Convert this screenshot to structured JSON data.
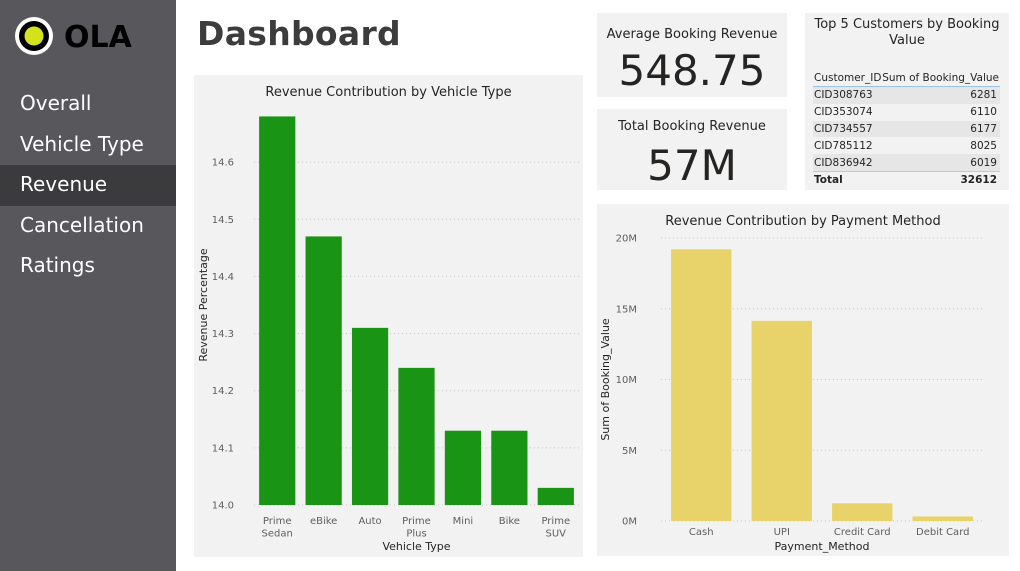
{
  "brand": {
    "logo_text": "OLA"
  },
  "nav": {
    "items": [
      {
        "label": "Overall",
        "active": false
      },
      {
        "label": "Vehicle Type",
        "active": false
      },
      {
        "label": "Revenue",
        "active": true
      },
      {
        "label": "Cancellation",
        "active": false
      },
      {
        "label": "Ratings",
        "active": false
      }
    ]
  },
  "page": {
    "title": "Dashboard"
  },
  "kpis": {
    "avg_booking_revenue": {
      "title": "Average Booking Revenue",
      "value": "548.75"
    },
    "total_booking_revenue": {
      "title": "Total Booking Revenue",
      "value": "57M"
    }
  },
  "top_customers": {
    "title": "Top 5 Customers by Booking Value",
    "columns": [
      "Customer_ID",
      "Sum of Booking_Value"
    ],
    "rows": [
      {
        "id": "CID308763",
        "value": "6281"
      },
      {
        "id": "CID353074",
        "value": "6110"
      },
      {
        "id": "CID734557",
        "value": "6177"
      },
      {
        "id": "CID785112",
        "value": "8025"
      },
      {
        "id": "CID836942",
        "value": "6019"
      }
    ],
    "total_label": "Total",
    "total_value": "32612"
  },
  "colors": {
    "vehicle_bar": "#1a9414",
    "payment_bar": "#e8d36a",
    "sidebar": "#58585c",
    "nav_active": "#3b3b3e"
  },
  "chart_data": [
    {
      "type": "bar",
      "title": "Revenue Contribution by Vehicle Type",
      "xlabel": "Vehicle Type",
      "ylabel": "Revenue Percentage",
      "categories": [
        "Prime Sedan",
        "eBike",
        "Auto",
        "Prime Plus",
        "Mini",
        "Bike",
        "Prime SUV"
      ],
      "values": [
        14.68,
        14.47,
        14.31,
        14.24,
        14.13,
        14.13,
        14.03
      ],
      "ylim": [
        14.0,
        14.7
      ],
      "yticks": [
        14.0,
        14.1,
        14.2,
        14.3,
        14.4,
        14.5,
        14.6
      ],
      "ytick_labels": [
        "14.0",
        "14.1",
        "14.2",
        "14.3",
        "14.4",
        "14.5",
        "14.6"
      ],
      "grid": true
    },
    {
      "type": "bar",
      "title": "Revenue Contribution by Payment Method",
      "xlabel": "Payment_Method",
      "ylabel": "Sum of Booking_Value",
      "categories": [
        "Cash",
        "UPI",
        "Credit Card",
        "Debit Card"
      ],
      "values": [
        19200000,
        14150000,
        1250000,
        320000
      ],
      "ylim": [
        0,
        20000000
      ],
      "yticks": [
        0,
        5000000,
        10000000,
        15000000,
        20000000
      ],
      "ytick_labels": [
        "0M",
        "5M",
        "10M",
        "15M",
        "20M"
      ],
      "grid": true
    }
  ]
}
